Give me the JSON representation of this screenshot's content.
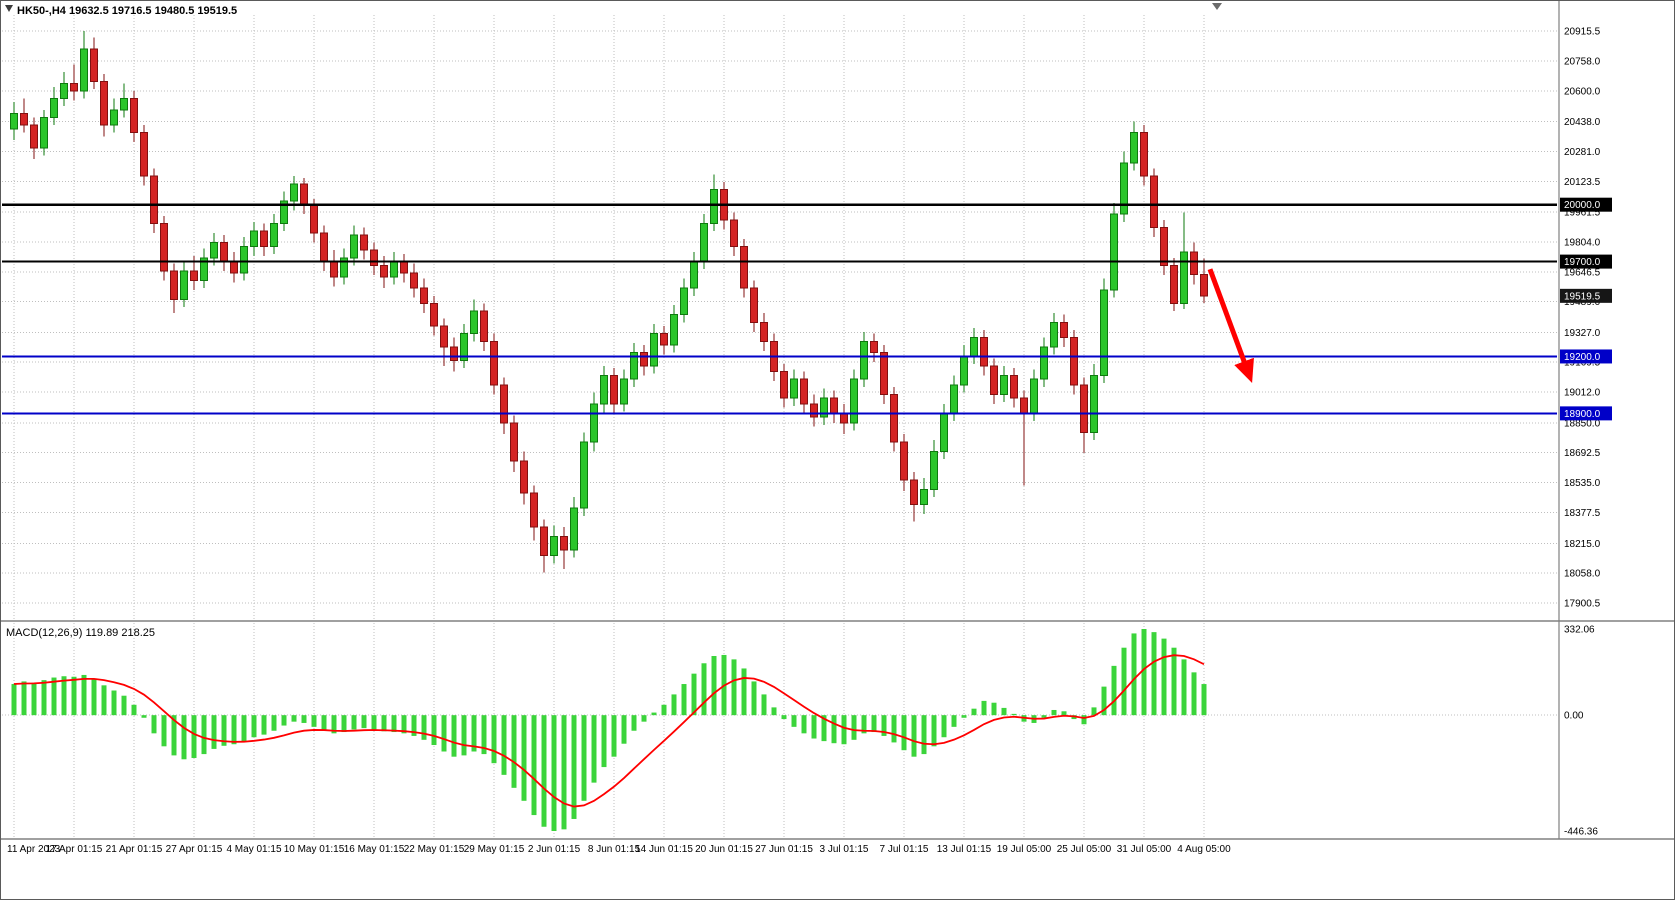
{
  "header": {
    "symbol": "HK50-",
    "timeframe": "H4",
    "open": 19632.5,
    "high": 19716.5,
    "low": 19480.5,
    "close": 19519.5,
    "text": "HK50-,H4  19632.5 19716.5 19480.5 19519.5"
  },
  "colors": {
    "background": "#FFFFFF",
    "grid": "#BFBFBF",
    "bull_fill": "#2BC52B",
    "bull_stroke": "#0E7A0E",
    "bear_fill": "#D42424",
    "bear_stroke": "#821010",
    "macd_hist": "#3BD43B",
    "macd_signal": "#FF0000",
    "separator": "#808080",
    "current_tag": "#161616",
    "arrow": "#FF0000"
  },
  "current_price": {
    "value": 19519.5,
    "label": "19519.5"
  },
  "annotation_arrow": {
    "x1_bar": 119.6,
    "y1_price": 19660,
    "x2_bar": 123.6,
    "y2_price": 19090,
    "color": "#FF0000"
  },
  "chart_data": [
    {
      "type": "candlestick",
      "title": "HK50-,H4",
      "ylabel": "price",
      "ylim": [
        17900.5,
        20915.5
      ],
      "y_tick_labels": [
        "20915.5",
        "20758.0",
        "20600.0",
        "20438.0",
        "20281.0",
        "20123.5",
        "19961.5",
        "19804.0",
        "19646.5",
        "19489.0",
        "19327.0",
        "19169.5",
        "19012.0",
        "18850.0",
        "18692.5",
        "18535.0",
        "18377.5",
        "18215.0",
        "18058.0",
        "17900.5"
      ],
      "x_tick_labels": [
        "11 Apr 2023",
        "17 Apr 01:15",
        "21 Apr 01:15",
        "27 Apr 01:15",
        "4 May 01:15",
        "10 May 01:15",
        "16 May 01:15",
        "22 May 01:15",
        "29 May 01:15",
        "2 Jun 01:15",
        "8 Jun 01:15",
        "14 Jun 01:15",
        "20 Jun 01:15",
        "27 Jun 01:15",
        "3 Jul 01:15",
        "7 Jul 01:15",
        "13 Jul 01:15",
        "19 Jul 05:00",
        "25 Jul 05:00",
        "31 Jul 05:00",
        "4 Aug 05:00"
      ],
      "horizontal_lines": [
        {
          "value": 20000.0,
          "label": "20000.0",
          "color": "#000000"
        },
        {
          "value": 19700.0,
          "label": "19700.0",
          "color": "#000000"
        },
        {
          "value": 19200.0,
          "label": "19200.0",
          "color": "#0000C8"
        },
        {
          "value": 18900.0,
          "label": "18900.0",
          "color": "#0000C8"
        }
      ],
      "last_price": 19519.5,
      "candles": [
        [
          20400,
          20540,
          20340,
          20480
        ],
        [
          20480,
          20560,
          20380,
          20420
        ],
        [
          20420,
          20460,
          20240,
          20300
        ],
        [
          20300,
          20500,
          20260,
          20460
        ],
        [
          20460,
          20620,
          20420,
          20560
        ],
        [
          20560,
          20700,
          20520,
          20640
        ],
        [
          20640,
          20740,
          20550,
          20600
        ],
        [
          20600,
          20915,
          20560,
          20820
        ],
        [
          20820,
          20880,
          20610,
          20650
        ],
        [
          20650,
          20690,
          20360,
          20420
        ],
        [
          20420,
          20560,
          20380,
          20500
        ],
        [
          20500,
          20640,
          20460,
          20560
        ],
        [
          20560,
          20600,
          20330,
          20380
        ],
        [
          20380,
          20420,
          20100,
          20150
        ],
        [
          20150,
          20190,
          19850,
          19900
        ],
        [
          19900,
          19940,
          19600,
          19650
        ],
        [
          19650,
          19690,
          19430,
          19500
        ],
        [
          19500,
          19700,
          19460,
          19650
        ],
        [
          19650,
          19730,
          19550,
          19600
        ],
        [
          19600,
          19770,
          19560,
          19720
        ],
        [
          19720,
          19850,
          19680,
          19800
        ],
        [
          19800,
          19840,
          19650,
          19700
        ],
        [
          19700,
          19750,
          19590,
          19640
        ],
        [
          19640,
          19830,
          19600,
          19780
        ],
        [
          19780,
          19910,
          19730,
          19860
        ],
        [
          19860,
          19900,
          19730,
          19780
        ],
        [
          19780,
          19950,
          19740,
          19900
        ],
        [
          19900,
          20070,
          19860,
          20020
        ],
        [
          20020,
          20150,
          19970,
          20110
        ],
        [
          20110,
          20140,
          19950,
          20000
        ],
        [
          20000,
          20030,
          19800,
          19850
        ],
        [
          19850,
          19890,
          19650,
          19700
        ],
        [
          19700,
          19760,
          19570,
          19620
        ],
        [
          19620,
          19770,
          19580,
          19720
        ],
        [
          19720,
          19890,
          19680,
          19840
        ],
        [
          19840,
          19880,
          19710,
          19760
        ],
        [
          19760,
          19800,
          19630,
          19680
        ],
        [
          19680,
          19730,
          19560,
          19620
        ],
        [
          19620,
          19750,
          19580,
          19700
        ],
        [
          19700,
          19740,
          19590,
          19640
        ],
        [
          19640,
          19690,
          19510,
          19560
        ],
        [
          19560,
          19610,
          19430,
          19480
        ],
        [
          19480,
          19520,
          19310,
          19360
        ],
        [
          19360,
          19400,
          19150,
          19250
        ],
        [
          19250,
          19300,
          19120,
          19180
        ],
        [
          19180,
          19370,
          19140,
          19320
        ],
        [
          19320,
          19500,
          19280,
          19440
        ],
        [
          19440,
          19480,
          19230,
          19280
        ],
        [
          19280,
          19320,
          19000,
          19050
        ],
        [
          19050,
          19090,
          18790,
          18850
        ],
        [
          18850,
          18890,
          18590,
          18650
        ],
        [
          18650,
          18700,
          18420,
          18480
        ],
        [
          18480,
          18520,
          18230,
          18300
        ],
        [
          18300,
          18340,
          18060,
          18150
        ],
        [
          18150,
          18310,
          18110,
          18250
        ],
        [
          18250,
          18300,
          18080,
          18180
        ],
        [
          18180,
          18460,
          18140,
          18400
        ],
        [
          18400,
          18800,
          18360,
          18750
        ],
        [
          18750,
          19010,
          18700,
          18950
        ],
        [
          18950,
          19150,
          18900,
          19100
        ],
        [
          19100,
          19140,
          18900,
          18950
        ],
        [
          18950,
          19130,
          18910,
          19080
        ],
        [
          19080,
          19270,
          19040,
          19220
        ],
        [
          19220,
          19260,
          19100,
          19150
        ],
        [
          19150,
          19370,
          19110,
          19320
        ],
        [
          19320,
          19360,
          19210,
          19260
        ],
        [
          19260,
          19470,
          19220,
          19420
        ],
        [
          19420,
          19610,
          19380,
          19560
        ],
        [
          19560,
          19750,
          19520,
          19700
        ],
        [
          19700,
          19950,
          19660,
          19900
        ],
        [
          19900,
          20160,
          19860,
          20080
        ],
        [
          20080,
          20120,
          19870,
          19920
        ],
        [
          19920,
          19960,
          19730,
          19780
        ],
        [
          19780,
          19820,
          19510,
          19560
        ],
        [
          19560,
          19600,
          19330,
          19380
        ],
        [
          19380,
          19430,
          19230,
          19280
        ],
        [
          19280,
          19320,
          19070,
          19120
        ],
        [
          19120,
          19160,
          18930,
          18980
        ],
        [
          18980,
          19130,
          18940,
          19080
        ],
        [
          19080,
          19120,
          18900,
          18950
        ],
        [
          18950,
          19000,
          18830,
          18880
        ],
        [
          18880,
          19030,
          18840,
          18980
        ],
        [
          18980,
          19020,
          18850,
          18900
        ],
        [
          18900,
          18950,
          18790,
          18850
        ],
        [
          18850,
          19130,
          18810,
          19080
        ],
        [
          19080,
          19330,
          19040,
          19280
        ],
        [
          19280,
          19320,
          19170,
          19220
        ],
        [
          19220,
          19260,
          18950,
          19000
        ],
        [
          19000,
          19040,
          18700,
          18750
        ],
        [
          18750,
          18790,
          18490,
          18550
        ],
        [
          18550,
          18590,
          18330,
          18420
        ],
        [
          18420,
          18560,
          18370,
          18500
        ],
        [
          18500,
          18760,
          18460,
          18700
        ],
        [
          18700,
          18950,
          18660,
          18900
        ],
        [
          18900,
          19100,
          18860,
          19050
        ],
        [
          19050,
          19260,
          19010,
          19200
        ],
        [
          19200,
          19350,
          19160,
          19300
        ],
        [
          19300,
          19340,
          19100,
          19150
        ],
        [
          19150,
          19190,
          18950,
          19000
        ],
        [
          19000,
          19150,
          18960,
          19100
        ],
        [
          19100,
          19140,
          18930,
          18980
        ],
        [
          18980,
          19020,
          18520,
          18900
        ],
        [
          18900,
          19130,
          18860,
          19080
        ],
        [
          19080,
          19300,
          19040,
          19250
        ],
        [
          19250,
          19430,
          19210,
          19380
        ],
        [
          19380,
          19420,
          19250,
          19300
        ],
        [
          19300,
          19340,
          19000,
          19050
        ],
        [
          19050,
          19090,
          18690,
          18800
        ],
        [
          18800,
          19160,
          18760,
          19100
        ],
        [
          19100,
          19610,
          19060,
          19550
        ],
        [
          19550,
          20010,
          19510,
          19950
        ],
        [
          19950,
          20280,
          19910,
          20220
        ],
        [
          20220,
          20438,
          20180,
          20380
        ],
        [
          20380,
          20420,
          20100,
          20150
        ],
        [
          20150,
          20190,
          19830,
          19880
        ],
        [
          19880,
          19920,
          19630,
          19680
        ],
        [
          19680,
          19720,
          19440,
          19480
        ],
        [
          19480,
          19960,
          19450,
          19750
        ],
        [
          19750,
          19800,
          19580,
          19632.5
        ],
        [
          19632.5,
          19716.5,
          19480.5,
          19519.5
        ]
      ]
    },
    {
      "type": "bar",
      "title": "MACD(12,26,9)",
      "header": "MACD(12,26,9) 119.89 218.25",
      "main_value": 119.89,
      "signal_value": 218.25,
      "ylim": [
        -446.36,
        332.06
      ],
      "y_tick_labels": [
        "332.06",
        "0.00",
        "-446.36"
      ],
      "signal": {
        "type": "line",
        "derived": "EMA9 of histogram",
        "last_value": 218.25,
        "color": "#FF0000"
      },
      "values": [
        120,
        130,
        125,
        135,
        145,
        150,
        148,
        155,
        140,
        115,
        95,
        75,
        40,
        -10,
        -70,
        -120,
        -155,
        -170,
        -165,
        -150,
        -130,
        -118,
        -112,
        -100,
        -85,
        -75,
        -60,
        -40,
        -25,
        -30,
        -45,
        -60,
        -70,
        -65,
        -55,
        -50,
        -55,
        -62,
        -65,
        -70,
        -80,
        -95,
        -115,
        -140,
        -160,
        -155,
        -140,
        -150,
        -185,
        -230,
        -280,
        -330,
        -385,
        -430,
        -446.36,
        -440,
        -400,
        -330,
        -260,
        -200,
        -160,
        -110,
        -60,
        -25,
        10,
        40,
        80,
        120,
        160,
        200,
        228,
        232,
        215,
        180,
        130,
        80,
        30,
        -15,
        -45,
        -70,
        -90,
        -100,
        -108,
        -112,
        -95,
        -70,
        -65,
        -80,
        -105,
        -135,
        -160,
        -150,
        -120,
        -85,
        -45,
        -10,
        25,
        55,
        48,
        28,
        5,
        -25,
        -30,
        -10,
        20,
        15,
        -15,
        -35,
        30,
        110,
        190,
        260,
        315,
        332.06,
        320,
        295,
        260,
        215,
        165,
        119.89
      ]
    }
  ]
}
